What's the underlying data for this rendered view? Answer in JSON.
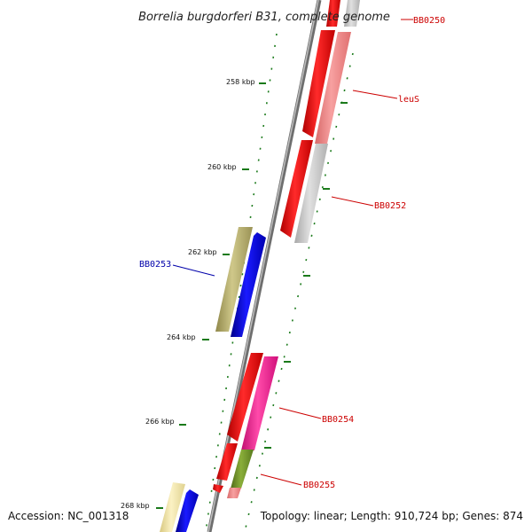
{
  "title": "Borrelia burgdorferi B31, complete genome",
  "footer": {
    "accession": "Accession: NC_001318",
    "summary": "Topology: linear; Length: 910,724 bp; Genes: 874"
  },
  "tick_labels": [
    "258 kbp",
    "260 kbp",
    "262 kbp",
    "264 kbp",
    "266 kbp",
    "268 kbp"
  ],
  "gene_labels": {
    "BB0250": "BB0250",
    "leuS": "leuS",
    "BB0252": "BB0252",
    "BB0253": "BB0253",
    "BB0254": "BB0254",
    "BB0255": "BB0255"
  },
  "colors": {
    "backbone": "#8a8a8a",
    "forward_strand": "#ff0000",
    "reverse_strand": "#0000ff",
    "tick": "#1a7a1a",
    "label_forward": "#cc0000",
    "label_reverse": "#0000aa",
    "cog_pink": "#f08080",
    "cog_gray": "#c0c0c0",
    "cog_olive": "#b5ad6a",
    "cog_magenta": "#ff1493",
    "cog_green": "#6b8e23",
    "cog_yellow": "#f5e6a0"
  }
}
